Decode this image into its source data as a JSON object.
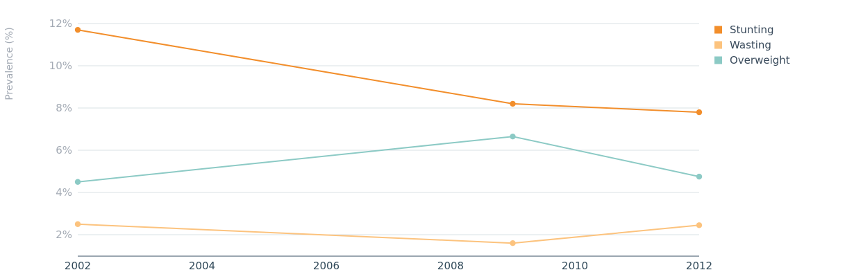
{
  "chart_data": {
    "type": "line",
    "ylabel": "Prevalence (%)",
    "xlim": [
      2002,
      2012
    ],
    "ylim": [
      1,
      12
    ],
    "x_ticks": [
      2002,
      2004,
      2006,
      2008,
      2010,
      2012
    ],
    "y_ticks": [
      2,
      4,
      6,
      8,
      10,
      12
    ],
    "y_tick_labels": [
      "2%",
      "4%",
      "6%",
      "8%",
      "10%",
      "12%"
    ],
    "grid": true,
    "legend_position": "top-right",
    "series": [
      {
        "name": "Stunting",
        "color": "#f28e2b",
        "x": [
          2002,
          2009,
          2012
        ],
        "values": [
          11.7,
          8.2,
          7.8
        ]
      },
      {
        "name": "Wasting",
        "color": "#fcc37e",
        "x": [
          2002,
          2009,
          2012
        ],
        "values": [
          2.5,
          1.6,
          2.45
        ]
      },
      {
        "name": "Overweight",
        "color": "#8ccac5",
        "x": [
          2002,
          2009,
          2012
        ],
        "values": [
          4.5,
          6.65,
          4.75
        ]
      }
    ]
  }
}
